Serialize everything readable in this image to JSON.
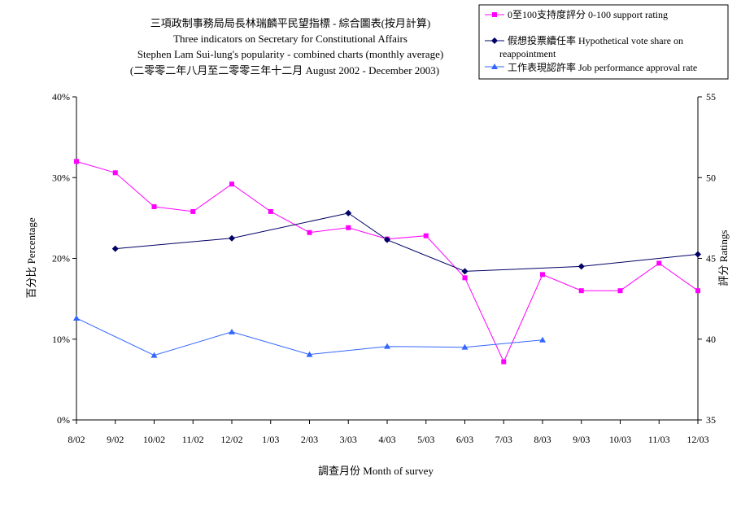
{
  "chart_data": {
    "type": "line",
    "title_lines": [
      "三項政制事務局局長林瑞麟平民望指標 - 綜合圖表(按月計算)",
      "Three indicators on Secretary for Constitutional Affairs",
      "Stephen Lam Sui-lung's popularity - combined charts (monthly average)",
      "(二零零二年八月至二零零三年十二月 August 2002 - December 2003)"
    ],
    "xlabel": "調查月份 Month of survey",
    "ylabel_left": "百分比 Percentage",
    "ylabel_right": "評分 Ratings",
    "categories": [
      "8/02",
      "9/02",
      "10/02",
      "11/02",
      "12/02",
      "1/03",
      "2/03",
      "3/03",
      "4/03",
      "5/03",
      "6/03",
      "7/03",
      "8/03",
      "9/03",
      "10/03",
      "11/03",
      "12/03"
    ],
    "ylim_left": [
      0,
      40
    ],
    "yticks_left": [
      "0%",
      "10%",
      "20%",
      "30%",
      "40%"
    ],
    "ylim_right": [
      35,
      55
    ],
    "yticks_right": [
      "35",
      "40",
      "45",
      "50",
      "55"
    ],
    "series": [
      {
        "name": "0至100支持度評分 0-100 support rating",
        "axis": "right",
        "color": "#ff00ff",
        "marker": "square",
        "values": [
          51.0,
          50.3,
          48.2,
          47.9,
          49.6,
          47.9,
          46.6,
          46.9,
          46.2,
          46.4,
          43.8,
          38.6,
          44.0,
          43.0,
          43.0,
          44.7,
          43.0
        ]
      },
      {
        "name": "假想投票續任率 Hypothetical vote share on reappointment",
        "axis": "left",
        "color": "#000066",
        "marker": "diamond",
        "values": [
          null,
          21.2,
          null,
          null,
          22.5,
          null,
          null,
          25.6,
          22.3,
          null,
          18.4,
          null,
          null,
          19.0,
          null,
          null,
          20.5
        ]
      },
      {
        "name": "工作表現認許率 Job performance approval rate",
        "axis": "left",
        "color": "#3366ff",
        "marker": "triangle",
        "values": [
          12.6,
          null,
          8.0,
          null,
          10.9,
          null,
          8.1,
          null,
          9.1,
          null,
          9.0,
          null,
          9.9,
          null,
          null,
          null,
          null
        ]
      }
    ],
    "legend_position": "top-right",
    "grid": false
  }
}
